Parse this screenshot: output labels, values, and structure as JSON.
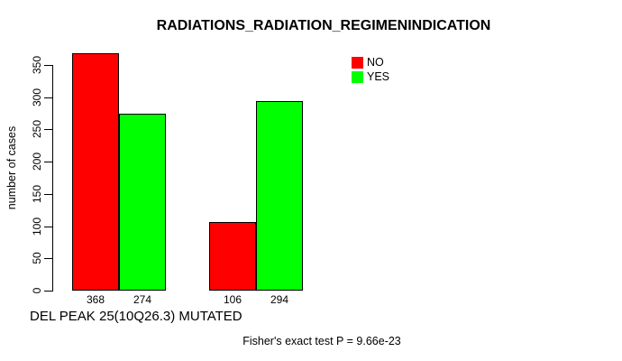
{
  "chart_data": {
    "type": "bar",
    "title": "RADIATIONS_RADIATION_REGIMENINDICATION",
    "ylabel": "number of cases",
    "xlabel": "DEL PEAK 25(10Q26.3) MUTATED",
    "footnote": "Fisher's exact test P = 9.66e-23",
    "yticks": [
      0,
      50,
      100,
      150,
      200,
      250,
      300,
      350
    ],
    "ylim": [
      0,
      368
    ],
    "grid": false,
    "legend_position": "top-right",
    "series": [
      {
        "name": "NO",
        "color": "#ff0000",
        "values": [
          368,
          106
        ]
      },
      {
        "name": "YES",
        "color": "#00ff00",
        "values": [
          274,
          294
        ]
      }
    ],
    "bar_value_labels": [
      "368",
      "274",
      "106",
      "294"
    ],
    "colors": {
      "background": "#ffffff",
      "axis": "#000000",
      "bar_border": "#000000",
      "text": "#000000"
    }
  }
}
